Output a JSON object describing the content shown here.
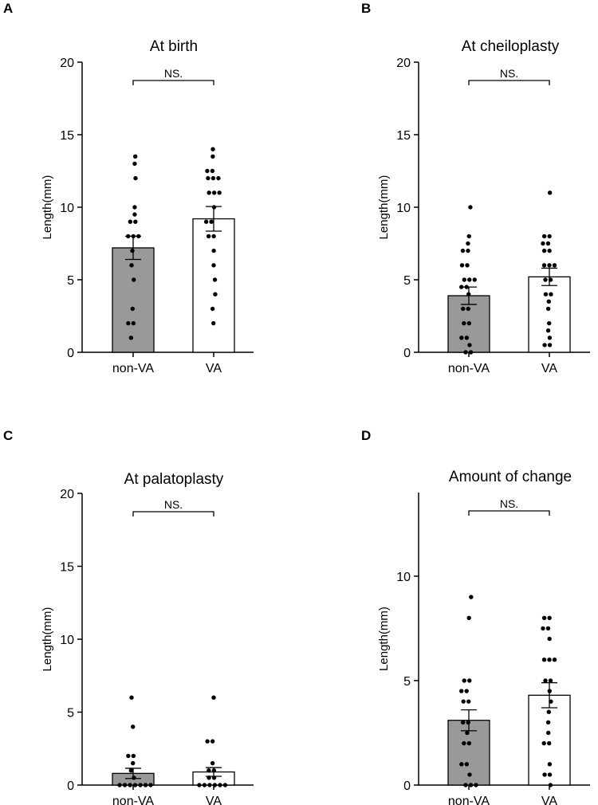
{
  "chart_data": [
    {
      "panel": "A",
      "type": "bar",
      "title": "At birth",
      "ylabel": "Length(mm)",
      "xlabel": "",
      "categories": [
        "non-VA",
        "VA"
      ],
      "values": [
        7.2,
        9.2
      ],
      "error": [
        0.8,
        0.85
      ],
      "bar_colors": [
        "#999999",
        "#ffffff"
      ],
      "ylim": [
        0,
        20
      ],
      "yticks": [
        "0",
        "5",
        "10",
        "15",
        "20"
      ],
      "significance": "NS.",
      "points": [
        [
          13.5,
          13.0,
          12.0,
          10.0,
          9.5,
          9.0,
          9.0,
          8.0,
          8.0,
          8.0,
          7.0,
          6.0,
          5.0,
          3.0,
          2.0,
          2.0,
          1.0
        ],
        [
          14.0,
          13.5,
          12.5,
          12.5,
          12.0,
          12.0,
          12.0,
          11.0,
          11.0,
          11.0,
          10.0,
          9.0,
          9.0,
          8.0,
          8.0,
          7.0,
          6.0,
          5.0,
          4.0,
          3.0,
          2.0
        ]
      ]
    },
    {
      "panel": "B",
      "type": "bar",
      "title": "At cheiloplasty",
      "ylabel": "Length(mm)",
      "xlabel": "",
      "categories": [
        "non-VA",
        "VA"
      ],
      "values": [
        3.9,
        5.2
      ],
      "error": [
        0.6,
        0.6
      ],
      "bar_colors": [
        "#999999",
        "#ffffff"
      ],
      "ylim": [
        0,
        20
      ],
      "yticks": [
        "0",
        "5",
        "10",
        "15",
        "20"
      ],
      "significance": "NS.",
      "points": [
        [
          10.0,
          8.0,
          7.5,
          7.0,
          7.0,
          6.0,
          6.0,
          5.0,
          5.0,
          5.0,
          4.5,
          4.5,
          4.0,
          3.0,
          3.0,
          2.0,
          2.0,
          1.0,
          1.0,
          0.5,
          0.0,
          0.0
        ],
        [
          11.0,
          8.0,
          8.0,
          7.5,
          7.5,
          7.0,
          7.0,
          6.0,
          6.0,
          6.0,
          5.0,
          5.0,
          4.0,
          4.0,
          3.5,
          3.0,
          2.0,
          1.5,
          1.0,
          0.5,
          0.5
        ]
      ]
    },
    {
      "panel": "C",
      "type": "bar",
      "title": "At palatoplasty",
      "ylabel": "Length(mm)",
      "xlabel": "",
      "categories": [
        "non-VA",
        "VA"
      ],
      "values": [
        0.8,
        0.9
      ],
      "error": [
        0.35,
        0.3
      ],
      "bar_colors": [
        "#999999",
        "#ffffff"
      ],
      "ylim": [
        0,
        20
      ],
      "yticks": [
        "0",
        "5",
        "10",
        "15",
        "20"
      ],
      "significance": "NS.",
      "points": [
        [
          6.0,
          4.0,
          2.0,
          2.0,
          1.5,
          1.0,
          0.5,
          0.0,
          0.0,
          0.0,
          0.0,
          0.0,
          0.0,
          0.0
        ],
        [
          6.0,
          3.0,
          3.0,
          1.5,
          1.0,
          1.0,
          0.5,
          0.5,
          0.0,
          0.0,
          0.0,
          0.0,
          0.0,
          0.0
        ]
      ]
    },
    {
      "panel": "D",
      "type": "bar",
      "title": "Amount of change",
      "ylabel": "Length(mm)",
      "xlabel": "",
      "categories": [
        "non-VA",
        "VA"
      ],
      "values": [
        3.1,
        4.3
      ],
      "error": [
        0.5,
        0.6
      ],
      "bar_colors": [
        "#999999",
        "#ffffff"
      ],
      "ylim": [
        0,
        14
      ],
      "yticks": [
        "0",
        "5",
        "10"
      ],
      "significance": "NS.",
      "points": [
        [
          9.0,
          8.0,
          5.0,
          5.0,
          4.5,
          4.5,
          4.0,
          4.0,
          3.0,
          3.0,
          2.5,
          2.0,
          2.0,
          1.0,
          1.0,
          0.5,
          0.0,
          0.0,
          0.0
        ],
        [
          8.0,
          8.0,
          7.5,
          7.5,
          7.0,
          6.0,
          6.0,
          6.0,
          5.0,
          5.0,
          4.5,
          4.0,
          3.5,
          3.0,
          2.5,
          2.0,
          2.0,
          1.0,
          0.5,
          0.5,
          0.0
        ]
      ]
    }
  ]
}
